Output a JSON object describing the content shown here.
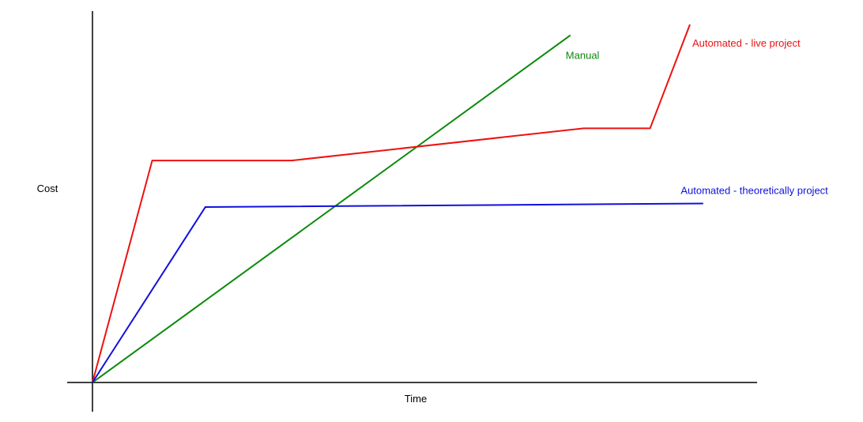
{
  "chart_data": {
    "type": "line",
    "xlabel": "Time",
    "ylabel": "Cost",
    "xlim": [
      0,
      100
    ],
    "ylim": [
      0,
      100
    ],
    "grid": false,
    "series": [
      {
        "name": "Manual",
        "color": "#0b8a0b",
        "points": [
          [
            0,
            0
          ],
          [
            72,
            97
          ]
        ]
      },
      {
        "name": "Automated - live project",
        "color": "#ee1111",
        "points": [
          [
            0,
            0
          ],
          [
            9,
            62
          ],
          [
            30,
            62
          ],
          [
            74,
            71
          ],
          [
            84,
            71
          ],
          [
            90,
            100
          ]
        ]
      },
      {
        "name": "Automated - theoretically project",
        "color": "#1111dd",
        "points": [
          [
            0,
            0
          ],
          [
            17,
            49
          ],
          [
            92,
            50
          ]
        ]
      }
    ]
  }
}
